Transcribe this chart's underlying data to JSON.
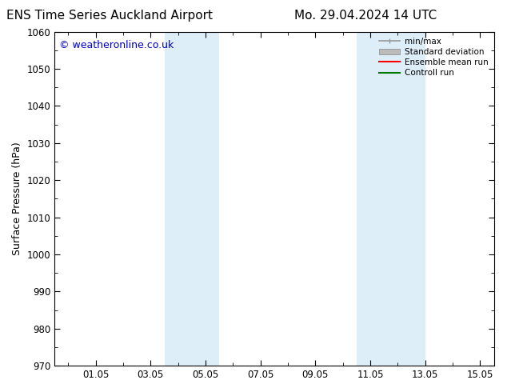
{
  "title_left": "ENS Time Series Auckland Airport",
  "title_right": "Mo. 29.04.2024 14 UTC",
  "ylabel": "Surface Pressure (hPa)",
  "ylim": [
    970,
    1060
  ],
  "yticks": [
    970,
    980,
    990,
    1000,
    1010,
    1020,
    1030,
    1040,
    1050,
    1060
  ],
  "xlim_start": -0.5,
  "xlim_end": 15.5,
  "xtick_positions": [
    1,
    3,
    5,
    7,
    9,
    11,
    13,
    15
  ],
  "xtick_labels": [
    "01.05",
    "03.05",
    "05.05",
    "07.05",
    "09.05",
    "11.05",
    "13.05",
    "15.05"
  ],
  "shaded_bands": [
    {
      "x_start": 3.5,
      "x_end": 5.5
    },
    {
      "x_start": 10.5,
      "x_end": 13.0
    }
  ],
  "shade_color": "#ddeef8",
  "watermark": "© weatheronline.co.uk",
  "watermark_color": "#0000cc",
  "background_color": "#ffffff",
  "plot_bg_color": "#ffffff",
  "legend_entries": [
    {
      "label": "min/max",
      "color": "#999999",
      "lw": 1.2
    },
    {
      "label": "Standard deviation",
      "color": "#bbbbbb",
      "lw": 6
    },
    {
      "label": "Ensemble mean run",
      "color": "#ff0000",
      "lw": 1.5
    },
    {
      "label": "Controll run",
      "color": "#007700",
      "lw": 1.5
    }
  ],
  "title_fontsize": 11,
  "tick_fontsize": 8.5,
  "label_fontsize": 9,
  "watermark_fontsize": 9
}
